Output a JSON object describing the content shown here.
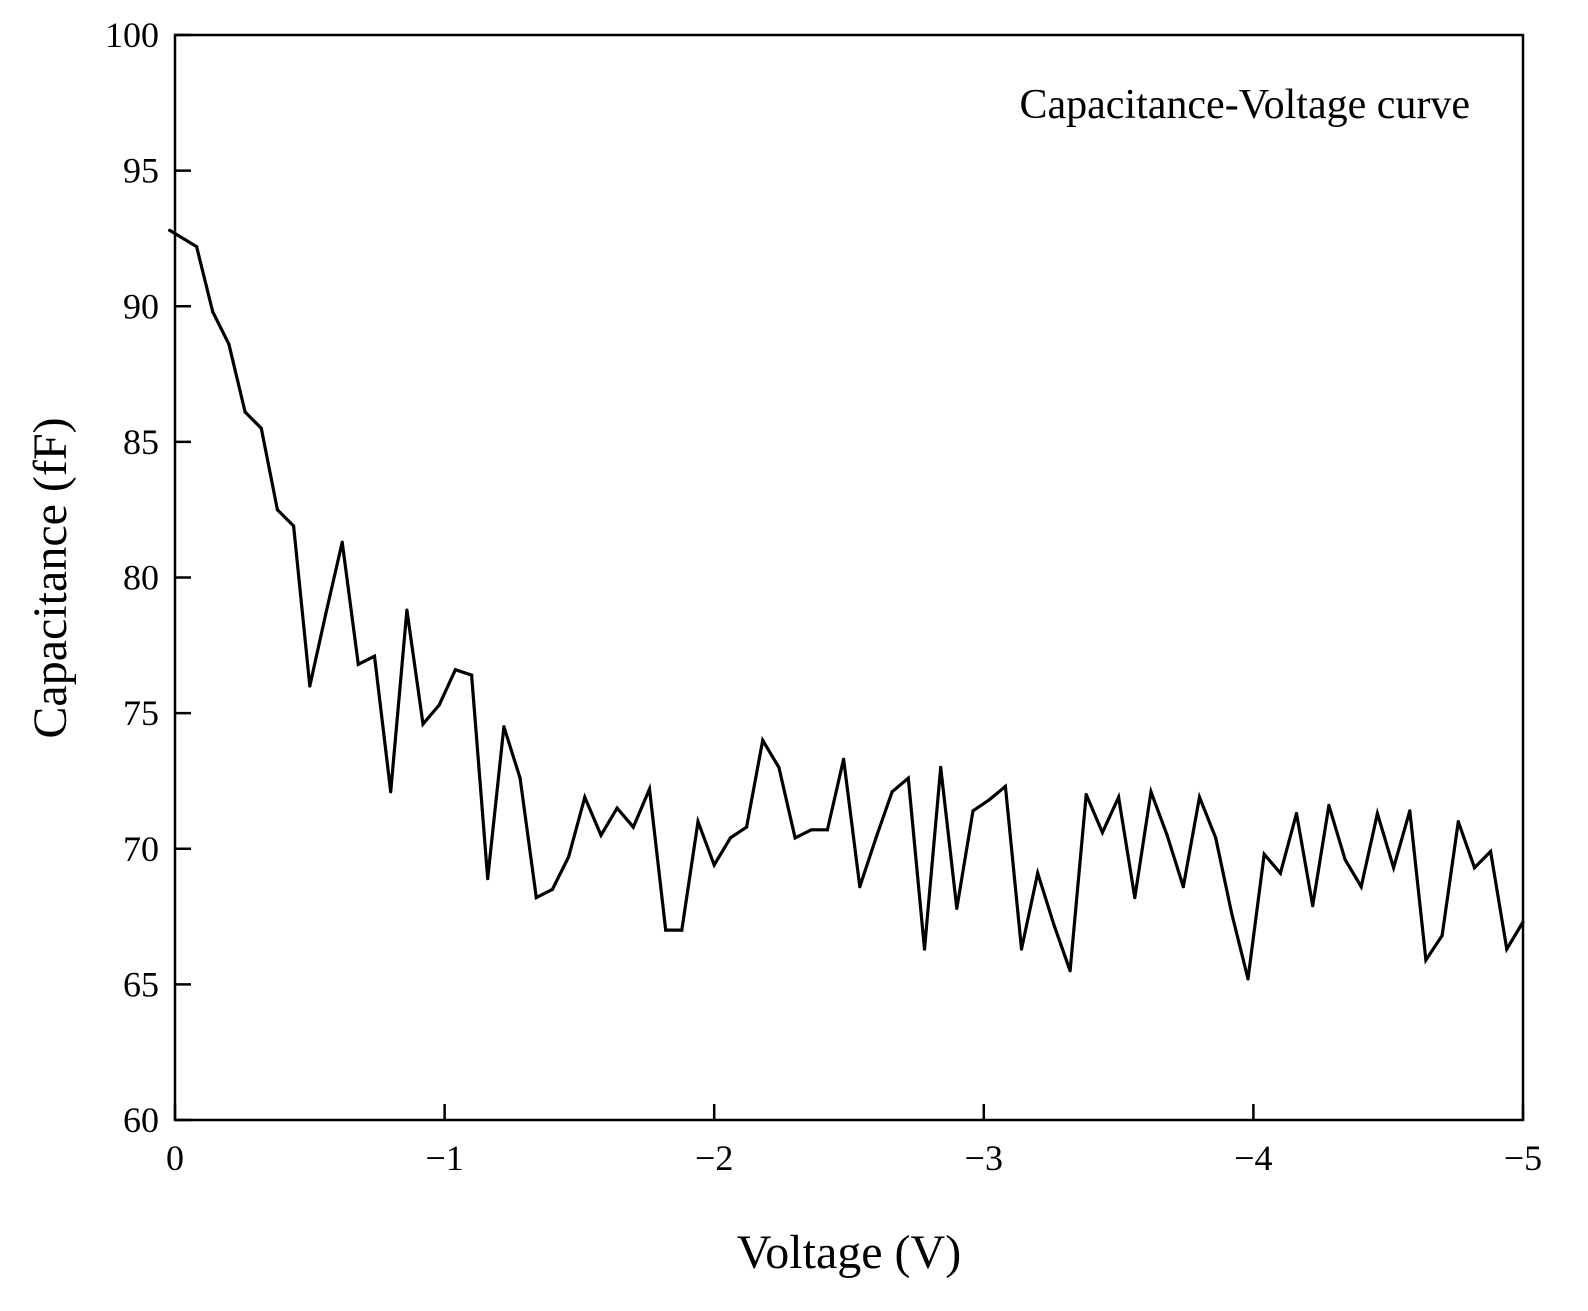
{
  "chart_data": {
    "type": "line",
    "annotation": "Capacitance-Voltage curve",
    "xlabel": "Voltage (V)",
    "ylabel": "Capacitance (fF)",
    "xlim": [
      0,
      -5
    ],
    "ylim": [
      60,
      100
    ],
    "xticks": [
      0,
      -1,
      -2,
      -3,
      -4,
      -5
    ],
    "xtick_labels": [
      "0",
      "−1",
      "−2",
      "−3",
      "−4",
      "−5"
    ],
    "yticks": [
      60,
      65,
      70,
      75,
      80,
      85,
      90,
      95,
      100
    ],
    "ytick_labels": [
      "60",
      "65",
      "70",
      "75",
      "80",
      "85",
      "90",
      "95",
      "100"
    ],
    "grid": false,
    "line_color": "#000000",
    "series": [
      {
        "x": [
          0.02,
          -0.08,
          -0.14,
          -0.2,
          -0.26,
          -0.32,
          -0.38,
          -0.44,
          -0.5,
          -0.56,
          -0.62,
          -0.68,
          -0.74,
          -0.8,
          -0.86,
          -0.92,
          -0.98,
          -1.04,
          -1.1,
          -1.16,
          -1.22,
          -1.28,
          -1.34,
          -1.4,
          -1.46,
          -1.52,
          -1.58,
          -1.64,
          -1.7,
          -1.76,
          -1.82,
          -1.88,
          -1.94,
          -2.0,
          -2.06,
          -2.12,
          -2.18,
          -2.24,
          -2.3,
          -2.36,
          -2.42,
          -2.48,
          -2.54,
          -2.6,
          -2.66,
          -2.72,
          -2.78,
          -2.84,
          -2.9,
          -2.96,
          -3.02,
          -3.08,
          -3.14,
          -3.2,
          -3.26,
          -3.32,
          -3.38,
          -3.44,
          -3.5,
          -3.56,
          -3.62,
          -3.68,
          -3.74,
          -3.8,
          -3.86,
          -3.92,
          -3.98,
          -4.04,
          -4.1,
          -4.16,
          -4.22,
          -4.28,
          -4.34,
          -4.4,
          -4.46,
          -4.52,
          -4.58,
          -4.64,
          -4.7,
          -4.76,
          -4.82,
          -4.88,
          -4.94,
          -5.0
        ],
        "y": [
          92.8,
          92.2,
          89.8,
          88.6,
          86.1,
          85.5,
          82.5,
          81.9,
          76.0,
          78.7,
          81.3,
          76.8,
          77.1,
          72.1,
          78.8,
          74.6,
          75.3,
          76.6,
          76.4,
          68.9,
          74.5,
          72.6,
          68.2,
          68.5,
          69.7,
          71.9,
          70.5,
          71.5,
          70.8,
          72.2,
          67.0,
          67.0,
          71.0,
          69.4,
          70.4,
          70.8,
          74.0,
          73.0,
          70.4,
          70.7,
          70.7,
          73.3,
          68.6,
          70.4,
          72.1,
          72.6,
          66.3,
          73.0,
          67.8,
          71.4,
          71.8,
          72.3,
          66.3,
          69.1,
          67.2,
          65.5,
          72.0,
          70.6,
          71.9,
          68.2,
          72.1,
          70.5,
          68.6,
          71.9,
          70.4,
          67.6,
          65.2,
          69.8,
          69.1,
          71.3,
          67.9,
          71.6,
          69.6,
          68.6,
          71.3,
          69.3,
          71.4,
          65.9,
          66.8,
          71.0,
          69.3,
          69.9,
          66.3,
          67.3
        ]
      }
    ]
  }
}
